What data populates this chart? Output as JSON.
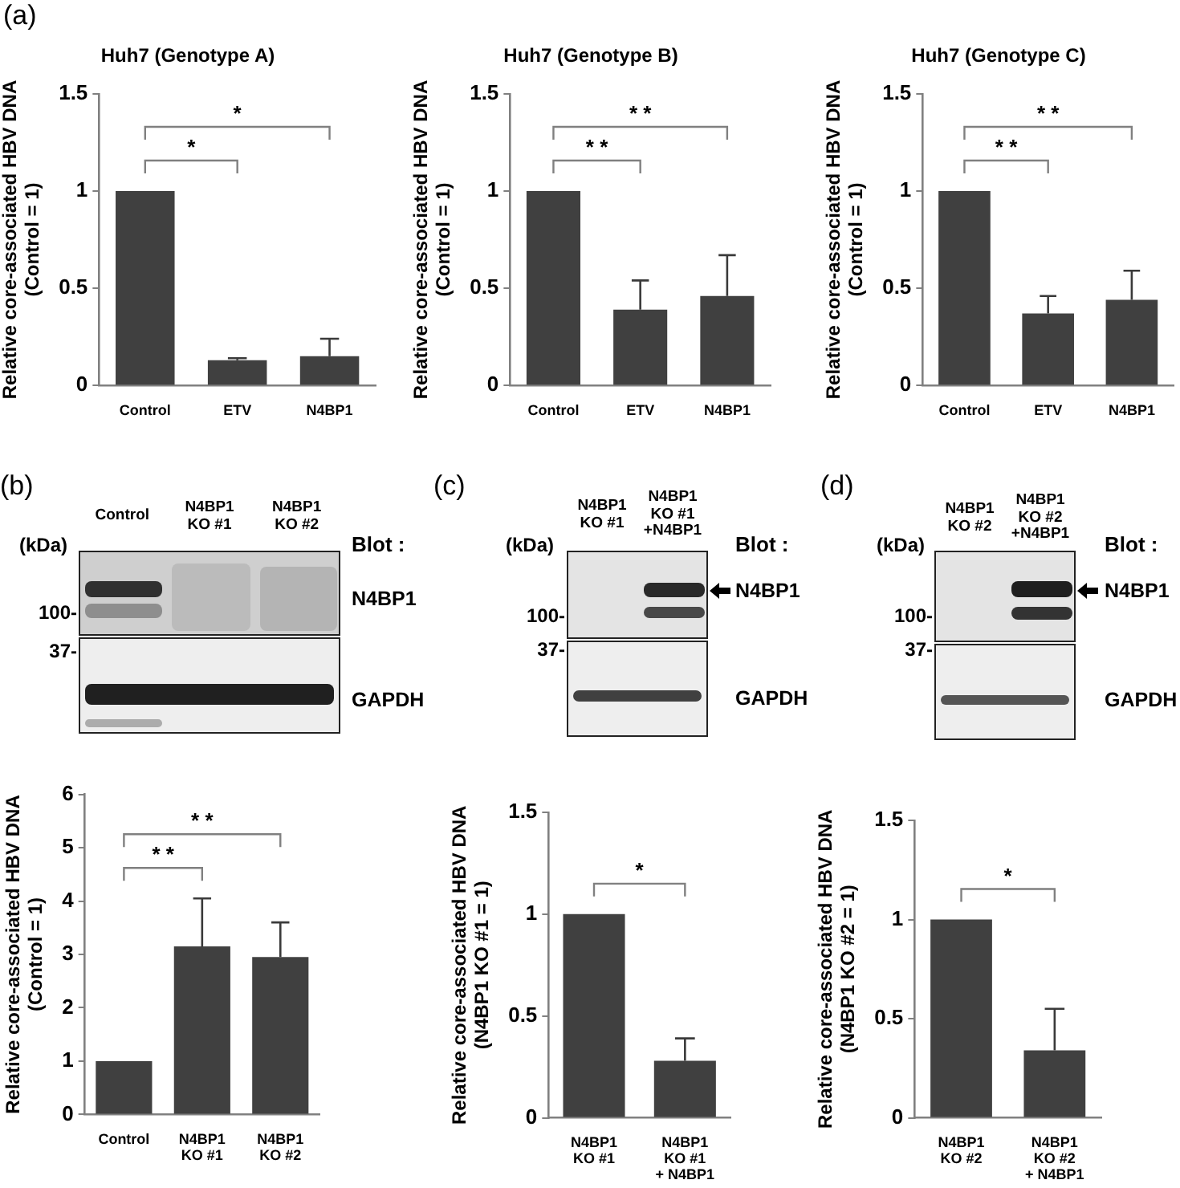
{
  "chart_data": [
    {
      "type": "bar",
      "title": "Huh7 (Genotype A)",
      "ylabel": "Relative core-associated HBV DNA\n(Control = 1)",
      "categories": [
        "Control",
        "ETV",
        "N4BP1"
      ],
      "values": [
        1,
        0.13,
        0.15
      ],
      "color": "#404040",
      "errors": [
        null,
        [
          0.13,
          0.14
        ],
        [
          0.15,
          0.24
        ]
      ],
      "ylim": [
        0,
        1.5
      ],
      "yticks": [
        0,
        0.5,
        1,
        1.5
      ],
      "annotations": [
        "(a)",
        "*",
        "*"
      ]
    },
    {
      "type": "bar",
      "title": "Huh7 (Genotype B)",
      "ylabel": "Relative core-associated HBV DNA\n(Control = 1)",
      "categories": [
        "Control",
        "ETV",
        "N4BP1"
      ],
      "values": [
        1,
        0.39,
        0.46
      ],
      "color": "#404040",
      "errors": [
        null,
        [
          0.39,
          0.54
        ],
        [
          0.46,
          0.67
        ]
      ],
      "ylim": [
        0,
        1.5
      ],
      "yticks": [
        0,
        0.5,
        1,
        1.5
      ],
      "annotations": [
        "* *",
        "* *"
      ]
    },
    {
      "type": "bar",
      "title": "Huh7 (Genotype C)",
      "ylabel": "Relative core-associated HBV DNA\n(Control = 1)",
      "categories": [
        "Control",
        "ETV",
        "N4BP1"
      ],
      "values": [
        1,
        0.37,
        0.44
      ],
      "color": "#404040",
      "errors": [
        null,
        [
          0.37,
          0.46
        ],
        [
          0.44,
          0.59
        ]
      ],
      "ylim": [
        0,
        1.5
      ],
      "yticks": [
        0,
        0.5,
        1,
        1.5
      ],
      "annotations": [
        "* *",
        "* *"
      ]
    },
    {
      "type": "other",
      "categories": [
        "Control",
        "N4BP1\nKO #1",
        "N4BP1\nKO #2"
      ],
      "annotations": [
        "(b)",
        "(kDa)",
        "100-",
        "37-",
        "Blot :",
        "N4BP1",
        "GAPDH"
      ]
    },
    {
      "type": "other",
      "categories": [
        "N4BP1\nKO #1",
        "N4BP1\nKO #1\n+N4BP1"
      ],
      "annotations": [
        "(c)",
        "(kDa)",
        "100-",
        "37-",
        "Blot :",
        "N4BP1",
        "GAPDH"
      ]
    },
    {
      "type": "other",
      "categories": [
        "N4BP1\nKO #2",
        "N4BP1\nKO #2\n+N4BP1"
      ],
      "annotations": [
        "(d)",
        "(kDa)",
        "100-",
        "37-",
        "Blot :",
        "N4BP1",
        "GAPDH"
      ]
    },
    {
      "type": "bar",
      "ylabel": "Relative core-associated HBV DNA\n(Control = 1)",
      "categories": [
        "Control",
        "N4BP1\nKO #1",
        "N4BP1\nKO #2"
      ],
      "values": [
        1,
        3.15,
        2.95
      ],
      "color": "#404040",
      "errors": [
        null,
        [
          3.15,
          4.05
        ],
        [
          2.95,
          3.6
        ]
      ],
      "ylim": [
        0,
        6
      ],
      "yticks": [
        0,
        1,
        2,
        3,
        4,
        5,
        6
      ],
      "annotations": [
        "* *",
        "* *"
      ]
    },
    {
      "type": "bar",
      "ylabel": "Relative core-associated HBV DNA\n(N4BP1 KO #1 = 1)",
      "categories": [
        "N4BP1\nKO #1",
        "N4BP1\nKO #1\n+ N4BP1"
      ],
      "values": [
        1,
        0.28
      ],
      "color": "#404040",
      "errors": [
        null,
        [
          0.28,
          0.39
        ]
      ],
      "ylim": [
        0,
        1.5
      ],
      "yticks": [
        0,
        0.5,
        1,
        1.5
      ],
      "annotations": [
        "*"
      ]
    },
    {
      "type": "bar",
      "ylabel": "Relative core-associated HBV DNA\n(N4BP1 KO #2 = 1)",
      "categories": [
        "N4BP1\nKO #2",
        "N4BP1\nKO #2\n+ N4BP1"
      ],
      "values": [
        1,
        0.34
      ],
      "color": "#404040",
      "errors": [
        null,
        [
          0.34,
          0.55
        ]
      ],
      "ylim": [
        0,
        1.5
      ],
      "yticks": [
        0,
        0.5,
        1,
        1.5
      ],
      "annotations": [
        "*"
      ]
    }
  ]
}
